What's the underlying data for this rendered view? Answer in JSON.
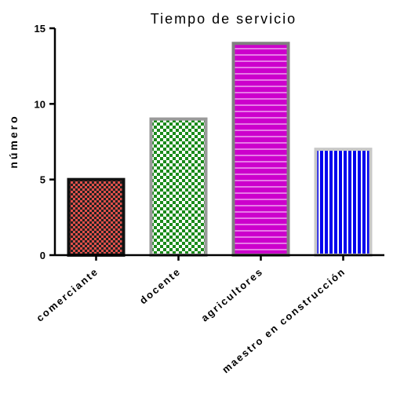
{
  "chart_data": {
    "type": "bar",
    "title": "Tiempo de servicio",
    "xlabel": "",
    "ylabel": "número",
    "ylim": [
      0,
      15
    ],
    "yticks": [
      0,
      5,
      10,
      15
    ],
    "categories": [
      "comerciante",
      "docente",
      "agricultores",
      "maestro en construcción"
    ],
    "values": [
      5,
      9,
      14,
      7
    ],
    "colors": {
      "comerciante": {
        "fill": "#e0504a",
        "pattern": "#222222",
        "border": "#111111"
      },
      "docente": {
        "fill": "#1a8a1a",
        "pattern": "#ffffff",
        "border": "#9a9a9a"
      },
      "agricultores": {
        "fill": "#cc00cc",
        "pattern": "#e77ae7",
        "border": "#808080"
      },
      "maestro en construcción": {
        "fill": "#0000ee",
        "pattern": "#ffffff",
        "border": "#c8c8c8"
      }
    },
    "grid": false,
    "legend": "none"
  }
}
